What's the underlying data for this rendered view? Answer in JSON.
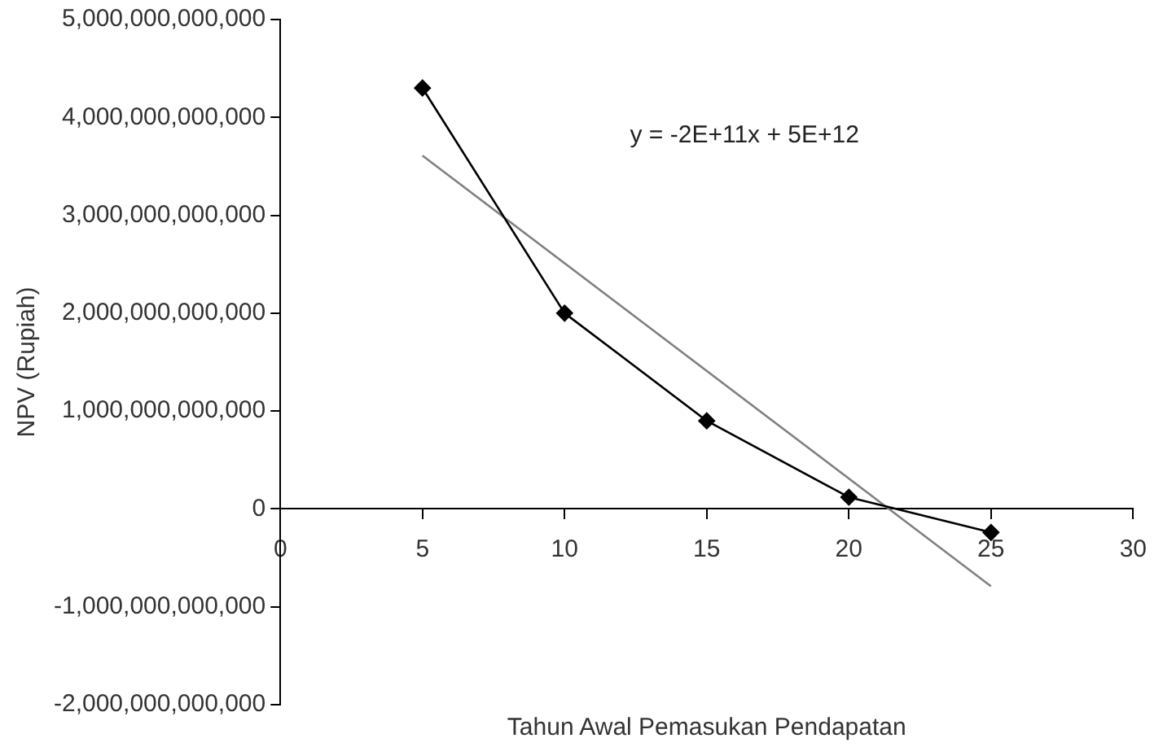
{
  "chart_data": {
    "type": "line",
    "xlabel": "Tahun Awal Pemasukan Pendapatan",
    "ylabel": "NPV (Rupiah)",
    "x": [
      5,
      10,
      15,
      20,
      25
    ],
    "series": [
      {
        "color": "#000000",
        "marker": "diamond",
        "values": [
          4300000000000.0,
          2000000000000.0,
          900000000000.0,
          120000000000.0,
          -240000000000.0
        ]
      },
      {
        "color": "#808080",
        "marker": "none",
        "x": [
          5,
          25
        ],
        "values": [
          3610000000000.0,
          -790000000000.0
        ]
      }
    ],
    "xlim": [
      0,
      30
    ],
    "xticks": [
      0,
      5,
      10,
      15,
      20,
      25,
      30
    ],
    "ylim": [
      -2000000000000.0,
      5000000000000.0
    ],
    "yticks": [
      {
        "value": -2000000000000.0,
        "label": "-2,000,000,000,000"
      },
      {
        "value": -1000000000000.0,
        "label": "-1,000,000,000,000"
      },
      {
        "value": 0,
        "label": "0"
      },
      {
        "value": 1000000000000.0,
        "label": "1,000,000,000,000"
      },
      {
        "value": 2000000000000.0,
        "label": "2,000,000,000,000"
      },
      {
        "value": 3000000000000.0,
        "label": "3,000,000,000,000"
      },
      {
        "value": 4000000000000.0,
        "label": "4,000,000,000,000"
      },
      {
        "value": 5000000000000.0,
        "label": "5,000,000,000,000"
      }
    ],
    "grid": false,
    "legend": false,
    "annotations": [
      "y = -2E+11x + 5E+12"
    ]
  }
}
